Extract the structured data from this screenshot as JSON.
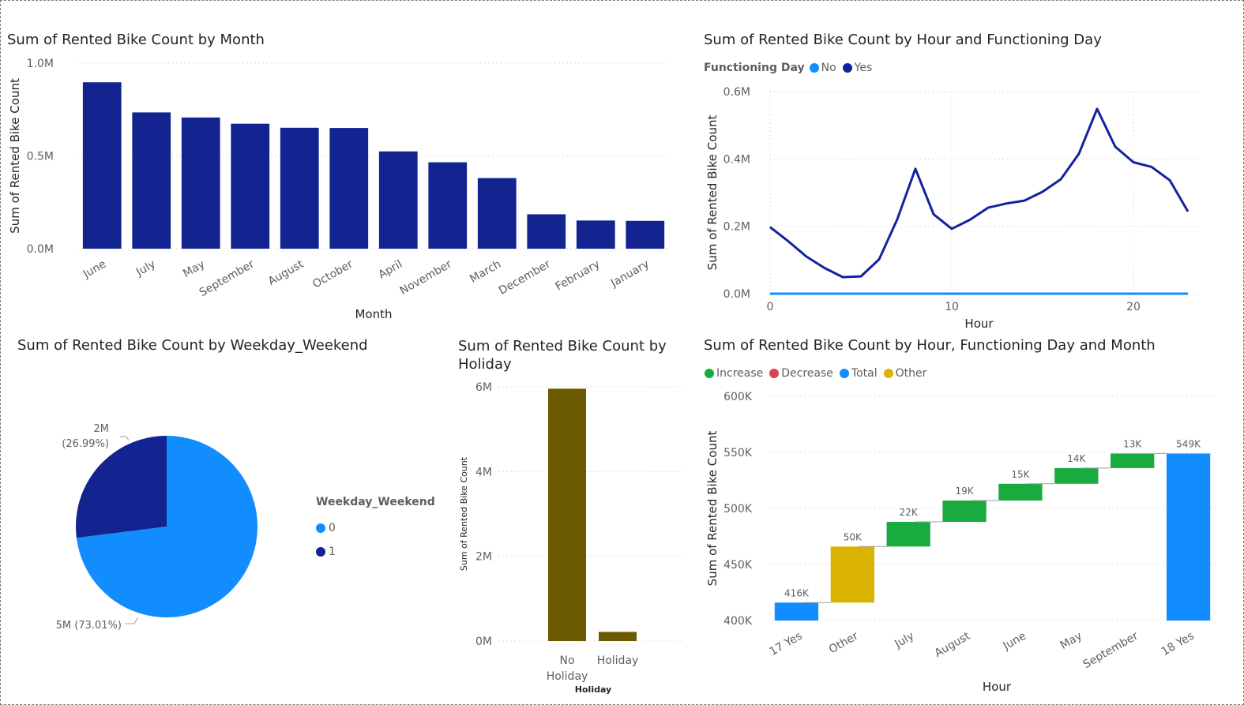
{
  "colors": {
    "dark_blue": "#13238f",
    "light_blue": "#118dff",
    "line_dark": "#12239e",
    "olive": "#6b5a00",
    "increase": "#1aab40",
    "decrease": "#d64554",
    "total": "#118dff",
    "other": "#d9b300"
  },
  "chart_data": [
    {
      "type": "bar",
      "title": "Sum of Rented Bike Count by Month",
      "xlabel": "Month",
      "ylabel": "Sum of Rented Bike Count",
      "ytick_labels": [
        "1.0M",
        "0.5M",
        "0.0M"
      ],
      "ylim": [
        0,
        1000000
      ],
      "categories": [
        "June",
        "July",
        "May",
        "September",
        "August",
        "October",
        "April",
        "November",
        "March",
        "December",
        "February",
        "January"
      ],
      "values": [
        896887,
        734460,
        707088,
        673612,
        651887,
        650675,
        524227,
        465715,
        380594,
        185330,
        151833,
        150006
      ]
    },
    {
      "type": "line",
      "title": "Sum of Rented Bike Count by Hour and Functioning Day",
      "xlabel": "Hour",
      "ylabel": "Sum of Rented Bike Count",
      "legend_title": "Functioning Day",
      "legend_position": "top-left",
      "xtick_labels": [
        "0",
        "10",
        "20"
      ],
      "ytick_labels": [
        "0.6M",
        "0.4M",
        "0.2M",
        "0.0M"
      ],
      "xlim": [
        0,
        23
      ],
      "ylim": [
        0,
        600000
      ],
      "x": [
        0,
        1,
        2,
        3,
        4,
        5,
        6,
        7,
        8,
        9,
        10,
        11,
        12,
        13,
        14,
        15,
        16,
        17,
        18,
        19,
        20,
        21,
        22,
        23
      ],
      "series": [
        {
          "name": "No",
          "values": [
            0,
            0,
            0,
            0,
            0,
            0,
            0,
            0,
            0,
            0,
            0,
            0,
            0,
            0,
            0,
            0,
            0,
            0,
            0,
            0,
            0,
            0,
            0,
            0
          ]
        },
        {
          "name": "Yes",
          "values": [
            197633,
            155557,
            110095,
            76196,
            49253,
            51237,
            102000,
            221000,
            370731,
            235784,
            192655,
            219311,
            255296,
            267635,
            276231,
            302653,
            339677,
            415556,
            548568,
            436229,
            390172,
            376479,
            336821,
            243943
          ]
        }
      ]
    },
    {
      "type": "pie",
      "title": "Sum of Rented Bike Count by Weekday_Weekend",
      "legend_title": "Weekday_Weekend",
      "legend_position": "right",
      "slices": [
        {
          "name": "0",
          "value": 73.01,
          "label": "5M (73.01%)"
        },
        {
          "name": "1",
          "value": 26.99,
          "label": "2M (26.99%)"
        }
      ]
    },
    {
      "type": "bar",
      "title": "Sum of Rented Bike Count by Holiday",
      "xlabel": "Holiday",
      "ylabel": "Sum of Rented Bike Count",
      "ytick_labels": [
        "6M",
        "4M",
        "2M",
        "0M"
      ],
      "ylim": [
        0,
        6000000
      ],
      "categories": [
        "No Holiday",
        "Holiday"
      ],
      "category_lines": [
        [
          "No",
          "Holiday"
        ],
        [
          "Holiday"
        ]
      ],
      "values": [
        5956419,
        215895
      ]
    },
    {
      "type": "waterfall",
      "title": "Sum of Rented Bike Count by Hour, Functioning Day and Month",
      "xlabel": "Hour",
      "ylabel": "Sum of Rented Bike Count",
      "legend_position": "top-left",
      "legend": [
        "Increase",
        "Decrease",
        "Total",
        "Other"
      ],
      "ytick_labels": [
        "600K",
        "550K",
        "500K",
        "450K",
        "400K"
      ],
      "ylim": [
        400000,
        600000
      ],
      "categories": [
        "17 Yes",
        "Other",
        "July",
        "August",
        "June",
        "May",
        "September",
        "18 Yes"
      ],
      "kinds": [
        "total",
        "other",
        "increase",
        "increase",
        "increase",
        "increase",
        "increase",
        "total"
      ],
      "values": [
        416000,
        50000,
        22000,
        19000,
        15000,
        14000,
        13000,
        549000
      ],
      "data_labels": [
        "416K",
        "50K",
        "22K",
        "19K",
        "15K",
        "14K",
        "13K",
        "549K"
      ]
    }
  ]
}
